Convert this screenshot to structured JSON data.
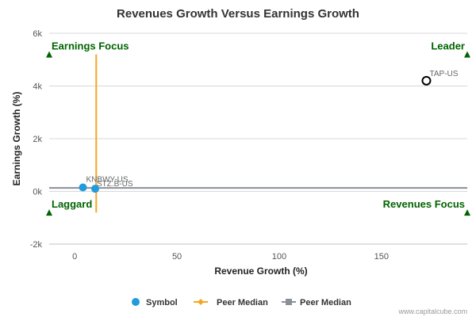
{
  "chart_data": {
    "type": "scatter",
    "title": "Revenues Growth Versus Earnings Growth",
    "xlabel": "Revenue Growth (%)",
    "ylabel": "Earnings Growth (%)",
    "xlim": [
      -12.5,
      192
    ],
    "ylim": [
      -2000,
      6000
    ],
    "x_ticks": [
      0,
      50,
      100,
      150
    ],
    "x_tick_labels": [
      "0",
      "50",
      "100",
      "150"
    ],
    "y_ticks": [
      -2000,
      0,
      2000,
      4000,
      6000
    ],
    "y_tick_labels": [
      "-2k",
      "0k",
      "2k",
      "4k",
      "6k"
    ],
    "grid": "horizontal",
    "series": [
      {
        "name": "Symbol",
        "marker": "circle",
        "color": "#1f9bde",
        "points": [
          {
            "label": "KNBWY-US",
            "x": 4,
            "y": 150
          },
          {
            "label": "STZ.B-US",
            "x": 10,
            "y": 100
          }
        ]
      },
      {
        "name": "Peer Median",
        "orientation": "vertical",
        "color": "#f5a623",
        "x": 10.5,
        "y_range": [
          -800,
          5200
        ]
      },
      {
        "name": "Peer Median",
        "orientation": "horizontal",
        "color": "#8a8f99",
        "y": 130,
        "x_range": [
          -12.5,
          192
        ]
      }
    ],
    "highlight": {
      "label": "TAP-US",
      "x": 172,
      "y": 4200
    },
    "quadrants": [
      {
        "label": "Earnings Focus",
        "x": -12.5,
        "y": 5200,
        "align": "start"
      },
      {
        "label": "Leader",
        "x": 192,
        "y": 5200,
        "align": "end"
      },
      {
        "label": "Laggard",
        "x": -12.5,
        "y": -800,
        "align": "start"
      },
      {
        "label": "Revenues Focus",
        "x": 192,
        "y": -800,
        "align": "end"
      }
    ],
    "legend": [
      {
        "label": "Symbol",
        "kind": "circle",
        "color": "#1f9bde"
      },
      {
        "label": "Peer Median",
        "kind": "diamond-line",
        "color": "#f5a623"
      },
      {
        "label": "Peer Median",
        "kind": "square-line",
        "color": "#8a8f99"
      }
    ],
    "legend_position": "bottom-center",
    "quadrant_color": "#006400",
    "credit": "www.capitalcube.com"
  }
}
